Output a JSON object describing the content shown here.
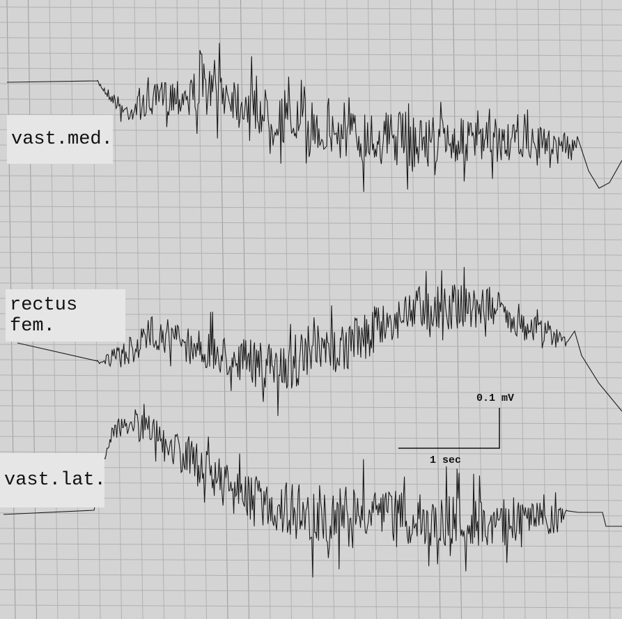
{
  "labels": {
    "vast_med": "vast.med.",
    "rectus_fem": "rectus fem.",
    "vast_lat": "vast.lat."
  },
  "scale_bar": {
    "amplitude": "0.1 mV",
    "time": "1 sec"
  }
}
